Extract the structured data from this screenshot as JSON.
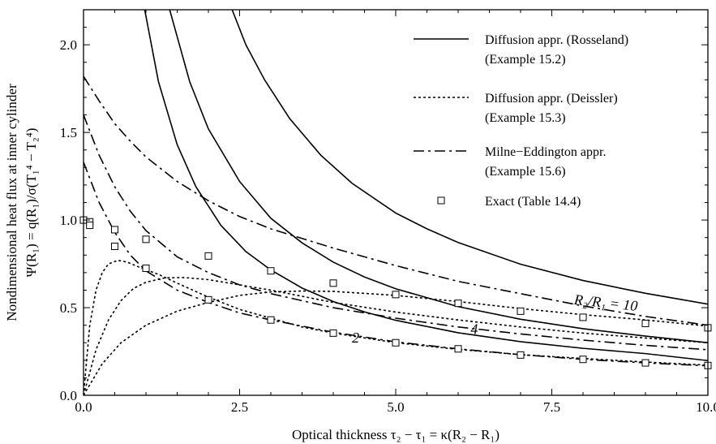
{
  "chart_data": {
    "type": "line",
    "xlabel": "Optical thickness τ₂ − τ₁ = κ(R₂ − R₁)",
    "ylabel_line1": "Nondimensional heat flux at inner cylinder",
    "ylabel_line2": "Ψ(R₁) = q(R₁)/σ(T₁⁴ − T₂⁴)",
    "xlim": [
      0,
      10
    ],
    "ylim": [
      0,
      2.2
    ],
    "x_ticks": [
      0,
      2.5,
      5,
      7.5,
      10
    ],
    "x_tick_labels": [
      "0.0",
      "2.5",
      "5.0",
      "7.5",
      "10.0"
    ],
    "y_ticks": [
      0,
      0.5,
      1.0,
      1.5,
      2.0
    ],
    "y_tick_labels": [
      "0.0",
      "0.5",
      "1.0",
      "1.5",
      "2.0"
    ],
    "grid": false,
    "legend_position": "top-right",
    "legend": [
      {
        "label": "Diffusion appr. (Rosseland)",
        "label2": "(Example 15.2)",
        "style": "solid"
      },
      {
        "label": "Diffusion appr. (Deissler)",
        "label2": "(Example 15.3)",
        "style": "dotted"
      },
      {
        "label": "Milne−Eddington appr.",
        "label2": "(Example 15.6)",
        "style": "dashdot"
      },
      {
        "label": "Exact (Table 14.4)",
        "label2": "",
        "style": "square-marker"
      }
    ],
    "annotations": [
      {
        "text": "R₂/R₁ = 10",
        "x": 7.85,
        "y": 0.52
      },
      {
        "text": "4",
        "x": 6.2,
        "y": 0.35
      },
      {
        "text": "2",
        "x": 4.3,
        "y": 0.3
      }
    ],
    "series": [
      {
        "style": "solid",
        "ratio": 2,
        "x": [
          0.98,
          1.2,
          1.5,
          1.8,
          2.2,
          2.6,
          3.0,
          3.5,
          4.0,
          4.5,
          5.0,
          6.0,
          7.0,
          8.0,
          9.0,
          10.0
        ],
        "y": [
          2.2,
          1.79,
          1.43,
          1.19,
          0.97,
          0.82,
          0.715,
          0.612,
          0.535,
          0.476,
          0.428,
          0.357,
          0.306,
          0.268,
          0.238,
          0.198
        ]
      },
      {
        "style": "solid",
        "ratio": 4,
        "x": [
          1.38,
          1.7,
          2.0,
          2.5,
          3.0,
          3.5,
          4.0,
          4.5,
          5.0,
          6.0,
          7.0,
          8.0,
          9.0,
          10.0
        ],
        "y": [
          2.2,
          1.79,
          1.52,
          1.22,
          1.01,
          0.87,
          0.76,
          0.675,
          0.608,
          0.506,
          0.434,
          0.38,
          0.338,
          0.3
        ]
      },
      {
        "style": "solid",
        "ratio": 10,
        "x": [
          2.38,
          2.6,
          2.9,
          3.3,
          3.8,
          4.3,
          5.0,
          5.5,
          6.0,
          7.0,
          8.0,
          9.0,
          10.0
        ],
        "y": [
          2.2,
          2.0,
          1.8,
          1.58,
          1.37,
          1.21,
          1.04,
          0.95,
          0.872,
          0.748,
          0.655,
          0.582,
          0.52
        ]
      },
      {
        "style": "dotted",
        "ratio": 2,
        "x": [
          0,
          0.1,
          0.2,
          0.3,
          0.4,
          0.55,
          0.7,
          0.9,
          1.2,
          1.5,
          2.0,
          2.5,
          3.0,
          3.5,
          4.0,
          5.0,
          6.0,
          7.0,
          8.0,
          9.0,
          10.0
        ],
        "y": [
          0,
          0.4,
          0.6,
          0.7,
          0.75,
          0.77,
          0.76,
          0.73,
          0.69,
          0.64,
          0.56,
          0.49,
          0.44,
          0.39,
          0.355,
          0.3,
          0.262,
          0.232,
          0.21,
          0.19,
          0.172
        ]
      },
      {
        "style": "dotted",
        "ratio": 4,
        "x": [
          0,
          0.2,
          0.4,
          0.6,
          0.8,
          1.0,
          1.3,
          1.6,
          2.0,
          2.5,
          3.0,
          4.0,
          5.0,
          6.0,
          7.0,
          8.0,
          9.0,
          10.0
        ],
        "y": [
          0,
          0.26,
          0.43,
          0.54,
          0.61,
          0.645,
          0.67,
          0.672,
          0.66,
          0.63,
          0.6,
          0.53,
          0.475,
          0.43,
          0.39,
          0.355,
          0.327,
          0.3
        ]
      },
      {
        "style": "dotted",
        "ratio": 10,
        "x": [
          0,
          0.3,
          0.6,
          1.0,
          1.5,
          2.0,
          2.5,
          3.0,
          3.5,
          4.0,
          5.0,
          6.0,
          7.0,
          8.0,
          9.0,
          10.0
        ],
        "y": [
          0,
          0.18,
          0.3,
          0.4,
          0.48,
          0.53,
          0.57,
          0.59,
          0.595,
          0.593,
          0.57,
          0.535,
          0.495,
          0.46,
          0.43,
          0.395
        ]
      },
      {
        "style": "dashdot",
        "ratio": 2,
        "x": [
          0,
          0.25,
          0.5,
          0.75,
          1.0,
          1.5,
          2.0,
          2.5,
          3.0,
          4.0,
          5.0,
          6.0,
          7.0,
          8.0,
          9.0,
          10.0
        ],
        "y": [
          1.33,
          1.1,
          0.93,
          0.8,
          0.71,
          0.6,
          0.53,
          0.47,
          0.43,
          0.36,
          0.305,
          0.265,
          0.232,
          0.205,
          0.185,
          0.168
        ]
      },
      {
        "style": "dashdot",
        "ratio": 4,
        "x": [
          0,
          0.25,
          0.5,
          0.75,
          1.0,
          1.5,
          2.0,
          2.5,
          3.0,
          4.0,
          5.0,
          6.0,
          7.0,
          8.0,
          9.0,
          10.0
        ],
        "y": [
          1.6,
          1.37,
          1.19,
          1.05,
          0.94,
          0.79,
          0.7,
          0.63,
          0.58,
          0.5,
          0.44,
          0.39,
          0.35,
          0.315,
          0.285,
          0.26
        ]
      },
      {
        "style": "dashdot",
        "ratio": 10,
        "x": [
          0,
          0.25,
          0.5,
          0.75,
          1.0,
          1.5,
          2.0,
          2.5,
          3.0,
          4.0,
          5.0,
          6.0,
          7.0,
          8.0,
          9.0,
          10.0
        ],
        "y": [
          1.82,
          1.68,
          1.55,
          1.45,
          1.36,
          1.22,
          1.11,
          1.02,
          0.95,
          0.84,
          0.74,
          0.65,
          0.58,
          0.51,
          0.45,
          0.4
        ]
      }
    ],
    "exact_points": [
      {
        "x": 0.0,
        "y": 1.0
      },
      {
        "x": 0.1,
        "y": 0.99
      },
      {
        "x": 0.1,
        "y": 0.97
      },
      {
        "x": 0.5,
        "y": 0.945
      },
      {
        "x": 0.5,
        "y": 0.85
      },
      {
        "x": 1.0,
        "y": 0.89
      },
      {
        "x": 1.0,
        "y": 0.725
      },
      {
        "x": 2.0,
        "y": 0.795
      },
      {
        "x": 2.0,
        "y": 0.545
      },
      {
        "x": 3.0,
        "y": 0.71
      },
      {
        "x": 3.0,
        "y": 0.43
      },
      {
        "x": 4.0,
        "y": 0.64
      },
      {
        "x": 4.0,
        "y": 0.355
      },
      {
        "x": 5.0,
        "y": 0.575
      },
      {
        "x": 5.0,
        "y": 0.3
      },
      {
        "x": 6.0,
        "y": 0.525
      },
      {
        "x": 6.0,
        "y": 0.265
      },
      {
        "x": 7.0,
        "y": 0.48
      },
      {
        "x": 7.0,
        "y": 0.23
      },
      {
        "x": 8.0,
        "y": 0.445
      },
      {
        "x": 8.0,
        "y": 0.205
      },
      {
        "x": 9.0,
        "y": 0.41
      },
      {
        "x": 9.0,
        "y": 0.185
      },
      {
        "x": 10.0,
        "y": 0.385
      },
      {
        "x": 10.0,
        "y": 0.17
      }
    ]
  }
}
